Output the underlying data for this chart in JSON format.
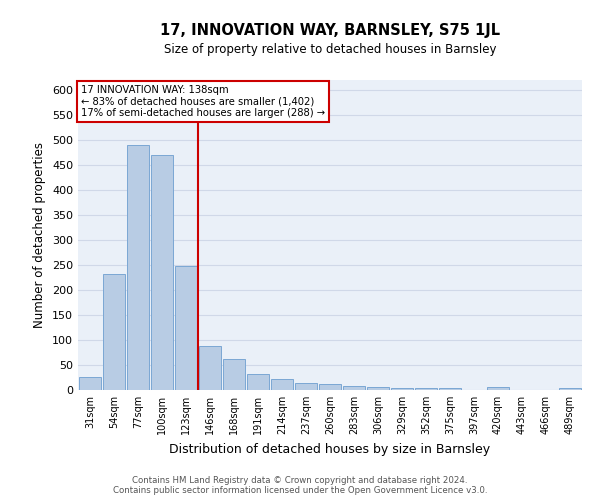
{
  "title1": "17, INNOVATION WAY, BARNSLEY, S75 1JL",
  "title2": "Size of property relative to detached houses in Barnsley",
  "xlabel": "Distribution of detached houses by size in Barnsley",
  "ylabel": "Number of detached properties",
  "categories": [
    "31sqm",
    "54sqm",
    "77sqm",
    "100sqm",
    "123sqm",
    "146sqm",
    "168sqm",
    "191sqm",
    "214sqm",
    "237sqm",
    "260sqm",
    "283sqm",
    "306sqm",
    "329sqm",
    "352sqm",
    "375sqm",
    "397sqm",
    "420sqm",
    "443sqm",
    "466sqm",
    "489sqm"
  ],
  "values": [
    27,
    233,
    490,
    470,
    249,
    88,
    62,
    32,
    23,
    14,
    12,
    9,
    7,
    4,
    4,
    4,
    0,
    7,
    0,
    0,
    5
  ],
  "bar_color": "#b8cce4",
  "bar_edge_color": "#7ba7d4",
  "grid_color": "#d0d8e8",
  "bg_color": "#eaf0f8",
  "annotation_box_color": "#ffffff",
  "annotation_border_color": "#cc0000",
  "property_line_color": "#cc0000",
  "property_line_x": 4.5,
  "annotation_line1": "17 INNOVATION WAY: 138sqm",
  "annotation_line2": "← 83% of detached houses are smaller (1,402)",
  "annotation_line3": "17% of semi-detached houses are larger (288) →",
  "footer1": "Contains HM Land Registry data © Crown copyright and database right 2024.",
  "footer2": "Contains public sector information licensed under the Open Government Licence v3.0.",
  "ylim": [
    0,
    620
  ],
  "yticks": [
    0,
    50,
    100,
    150,
    200,
    250,
    300,
    350,
    400,
    450,
    500,
    550,
    600
  ]
}
